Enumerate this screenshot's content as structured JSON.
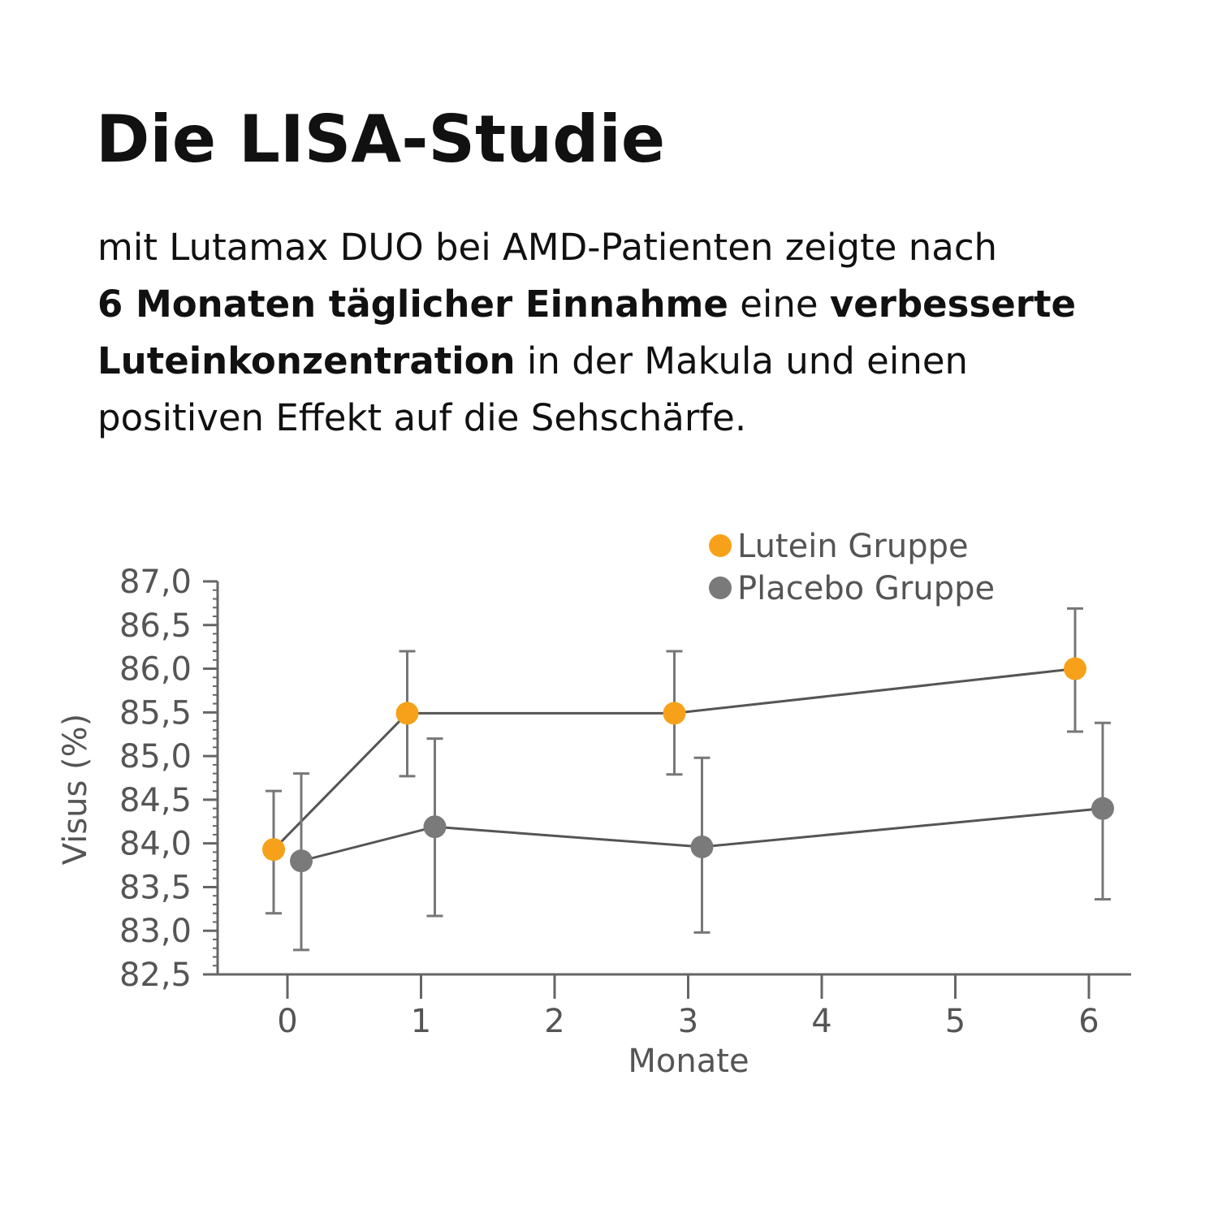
{
  "page": {
    "title": "Die LISA-Studie",
    "intro": {
      "line1": "mit Lutamax DUO bei AMD-Patienten zeigte nach",
      "line2_bold_a": "6 Monaten täglicher Einnahme",
      "line2_plain": " eine ",
      "line2_bold_b": "verbesserte",
      "line3_bold": "Luteinkonzentration",
      "line3_plain": " in der Makula und einen",
      "line4": "positiven Effekt auf die Sehschärfe."
    }
  },
  "colors": {
    "lutein": "#f7a11a",
    "placebo": "#7a7a7a",
    "axis": "#666666",
    "line": "#555555",
    "text": "#111111",
    "tick_text": "#555555"
  },
  "chart_data": {
    "type": "scatter",
    "xlabel": "Monate",
    "ylabel": "Visus (%)",
    "ylim": [
      82.5,
      87.0
    ],
    "xlim": [
      -0.5,
      6.3
    ],
    "x_ticks": [
      0,
      1,
      2,
      3,
      4,
      5,
      6
    ],
    "x_tick_labels": [
      "0",
      "1",
      "2",
      "3",
      "4",
      "5",
      "6"
    ],
    "y_ticks": [
      82.5,
      83.0,
      83.5,
      84.0,
      84.5,
      85.0,
      85.5,
      86.0,
      86.5,
      87.0
    ],
    "y_tick_labels": [
      "82,5",
      "83,0",
      "83,5",
      "84,0",
      "84,5",
      "85,0",
      "85,5",
      "86,0",
      "86,5",
      "87,0"
    ],
    "legend_position": "top-right",
    "series": [
      {
        "name": "Lutein Gruppe",
        "color": "#f7a11a",
        "x": [
          0,
          1,
          3,
          6
        ],
        "y": [
          83.93,
          85.49,
          85.49,
          86.0
        ],
        "err_low": [
          83.2,
          84.77,
          84.79,
          85.28
        ],
        "err_high": [
          84.6,
          86.2,
          86.2,
          86.69
        ]
      },
      {
        "name": "Placebo Gruppe",
        "color": "#7a7a7a",
        "x": [
          0,
          1,
          3,
          6
        ],
        "y": [
          83.8,
          84.19,
          83.96,
          84.4
        ],
        "err_low": [
          82.78,
          83.17,
          82.98,
          83.36
        ],
        "err_high": [
          84.8,
          85.2,
          84.98,
          85.38
        ]
      }
    ]
  }
}
